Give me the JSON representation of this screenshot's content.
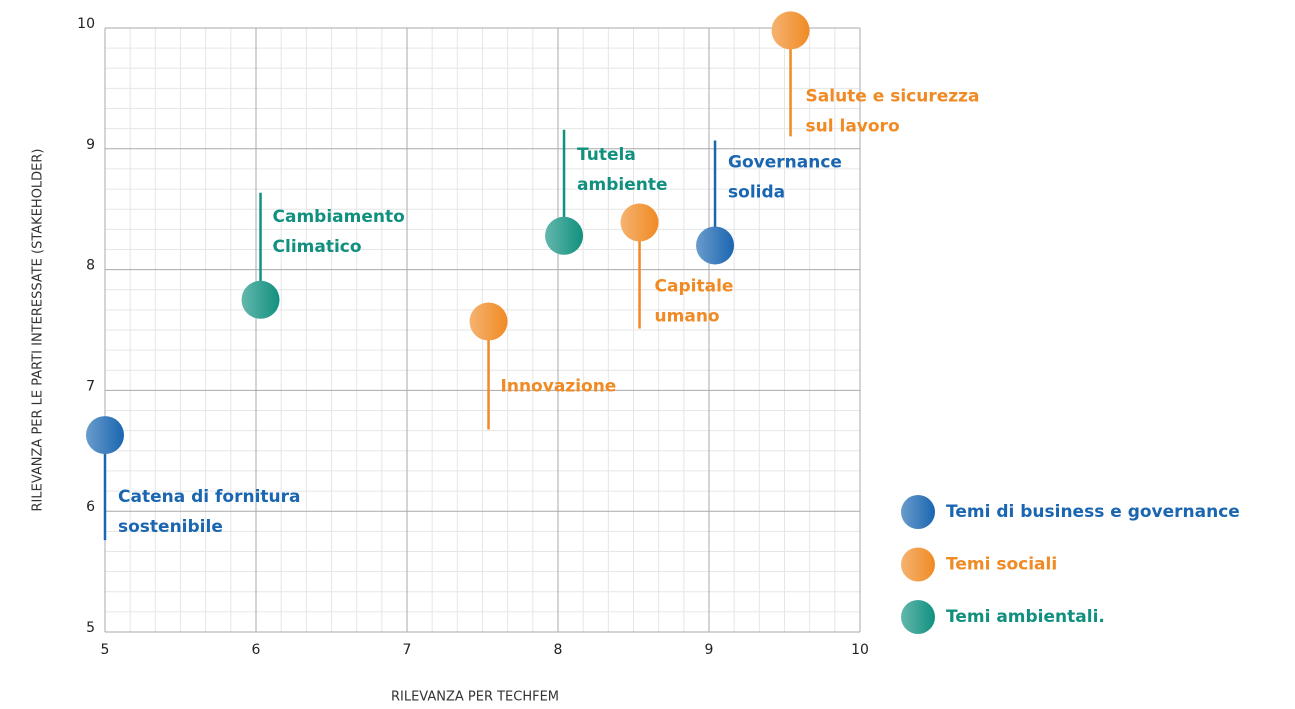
{
  "chart_data": {
    "type": "scatter",
    "xlabel": "RILEVANZA PER TECHFEM",
    "ylabel": "RILEVANZA PER LE PARTI INTERESSATE (STAKEHOLDER)",
    "xlim": [
      5,
      10
    ],
    "ylim": [
      5,
      10
    ],
    "xticks": [
      5,
      6,
      7,
      8,
      9,
      10
    ],
    "yticks": [
      5,
      6,
      7,
      8,
      9,
      10
    ],
    "grid": true,
    "series": [
      {
        "name": "Temi di business e governance",
        "color": "#1a66b0",
        "x": [
          5.0,
          9.04
        ],
        "values": [
          6.63,
          8.2
        ],
        "labels": [
          [
            "Catena di fornitura",
            "sostenibile"
          ],
          [
            "Governance",
            "solida"
          ]
        ]
      },
      {
        "name": "Temi sociali",
        "color": "#f08a24",
        "x": [
          7.54,
          8.54,
          9.54
        ],
        "values": [
          7.57,
          8.39,
          9.98
        ],
        "labels": [
          [
            "Innovazione"
          ],
          [
            "Capitale",
            "umano"
          ],
          [
            "Salute e sicurezza",
            "sul lavoro"
          ]
        ]
      },
      {
        "name": "Temi ambientali.",
        "color": "#11907f",
        "x": [
          6.03,
          8.04
        ],
        "values": [
          7.75,
          8.28
        ],
        "labels": [
          [
            "Cambiamento",
            "Climatico"
          ],
          [
            "Tutela",
            "ambiente"
          ]
        ]
      }
    ]
  }
}
